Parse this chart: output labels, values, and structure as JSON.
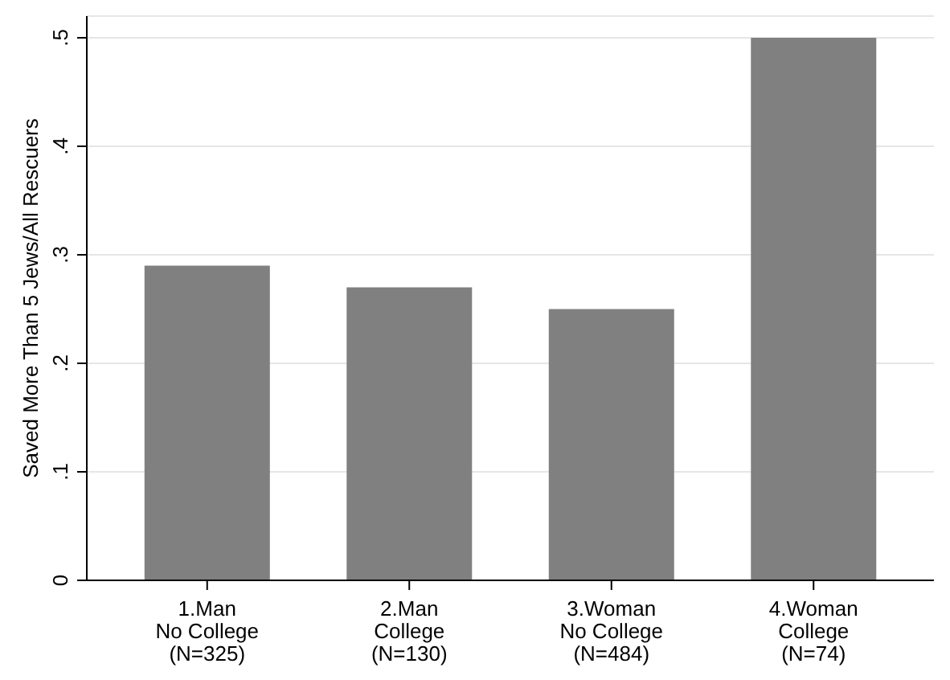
{
  "chart_data": {
    "type": "bar",
    "ylabel": "Saved More Than 5 Jews/All Rescuers",
    "categories": [
      "1.Man\nNo College\n(N=325)",
      "2.Man\nCollege\n(N=130)",
      "3.Woman\nNo College\n(N=484)",
      "4.Woman\nCollege\n(N=74)"
    ],
    "values": [
      0.29,
      0.27,
      0.25,
      0.5
    ],
    "color": "#808080",
    "ylim": [
      0,
      0.52
    ],
    "yticks": [
      {
        "value": 0,
        "label": "0"
      },
      {
        "value": 0.1,
        "label": ".1"
      },
      {
        "value": 0.2,
        "label": ".2"
      },
      {
        "value": 0.3,
        "label": ".3"
      },
      {
        "value": 0.4,
        "label": ".4"
      },
      {
        "value": 0.5,
        "label": ".5"
      }
    ],
    "grid": "y"
  }
}
